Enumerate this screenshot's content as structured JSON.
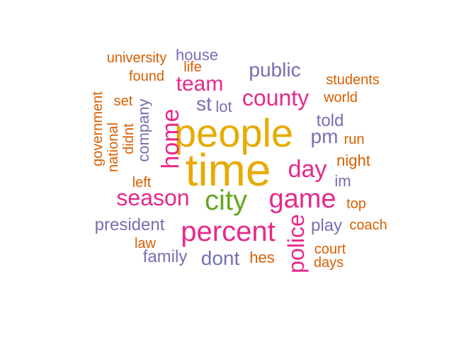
{
  "words": [
    {
      "text": "time",
      "size": 64,
      "color": "#e6ab02"
    },
    {
      "text": "people",
      "size": 56,
      "color": "#e6ab02"
    },
    {
      "text": "percent",
      "size": 40,
      "color": "#e7298a"
    },
    {
      "text": "city",
      "size": 40,
      "color": "#66a61e"
    },
    {
      "text": "game",
      "size": 38,
      "color": "#e7298a"
    },
    {
      "text": "season",
      "size": 32,
      "color": "#e7298a"
    },
    {
      "text": "county",
      "size": 32,
      "color": "#e7298a"
    },
    {
      "text": "day",
      "size": 34,
      "color": "#e7298a"
    },
    {
      "text": "home",
      "size": 34,
      "color": "#e7298a",
      "rotate": -90
    },
    {
      "text": "police",
      "size": 32,
      "color": "#e7298a",
      "rotate": -90
    },
    {
      "text": "team",
      "size": 30,
      "color": "#e7298a"
    },
    {
      "text": "public",
      "size": 28,
      "color": "#7570b3"
    },
    {
      "text": "dont",
      "size": 28,
      "color": "#7570b3"
    },
    {
      "text": "pm",
      "size": 28,
      "color": "#7570b3"
    },
    {
      "text": "st",
      "size": 28,
      "color": "#7570b3"
    },
    {
      "text": "president",
      "size": 24,
      "color": "#7570b3"
    },
    {
      "text": "family",
      "size": 24,
      "color": "#7570b3"
    },
    {
      "text": "company",
      "size": 22,
      "color": "#7570b3",
      "rotate": -90
    },
    {
      "text": "told",
      "size": 24,
      "color": "#7570b3"
    },
    {
      "text": "play",
      "size": 24,
      "color": "#7570b3"
    },
    {
      "text": "im",
      "size": 22,
      "color": "#7570b3"
    },
    {
      "text": "lot",
      "size": 22,
      "color": "#7570b3"
    },
    {
      "text": "house",
      "size": 22,
      "color": "#7570b3"
    },
    {
      "text": "hes",
      "size": 22,
      "color": "#d95f02"
    },
    {
      "text": "night",
      "size": 22,
      "color": "#d95f02"
    },
    {
      "text": "court",
      "size": 20,
      "color": "#d95f02"
    },
    {
      "text": "world",
      "size": 20,
      "color": "#d95f02"
    },
    {
      "text": "found",
      "size": 20,
      "color": "#d95f02"
    },
    {
      "text": "students",
      "size": 20,
      "color": "#d95f02"
    },
    {
      "text": "coach",
      "size": 20,
      "color": "#d95f02"
    },
    {
      "text": "days",
      "size": 20,
      "color": "#d95f02"
    },
    {
      "text": "top",
      "size": 20,
      "color": "#d95f02"
    },
    {
      "text": "run",
      "size": 20,
      "color": "#d95f02"
    },
    {
      "text": "left",
      "size": 20,
      "color": "#d95f02"
    },
    {
      "text": "law",
      "size": 20,
      "color": "#d95f02"
    },
    {
      "text": "set",
      "size": 20,
      "color": "#d95f02"
    },
    {
      "text": "life",
      "size": 20,
      "color": "#d95f02"
    },
    {
      "text": "university",
      "size": 20,
      "color": "#d95f02"
    },
    {
      "text": "didnt",
      "size": 20,
      "color": "#d95f02",
      "rotate": -90
    },
    {
      "text": "national",
      "size": 20,
      "color": "#d95f02",
      "rotate": -90
    },
    {
      "text": "government",
      "size": 20,
      "color": "#d95f02",
      "rotate": -90
    }
  ]
}
